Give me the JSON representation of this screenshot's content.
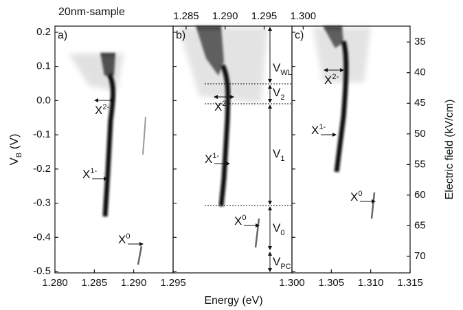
{
  "title": "20nm-sample",
  "chart_data": [
    {
      "type": "image",
      "panel_label": "a)",
      "xlim": [
        1.28,
        1.295
      ],
      "xticks": [
        {
          "value": 1.28,
          "label": "1.280"
        },
        1.285,
        {
          "value": 1.29,
          "label": "1.290"
        }
      ],
      "ylim": [
        -0.504,
        0.218
      ],
      "yticks": [
        0.2,
        0.1,
        {
          "value": 0,
          "label": "0.0"
        },
        -0.1,
        -0.2,
        -0.3,
        -0.4,
        -0.5
      ],
      "y_label": {
        "base": "V",
        "sub": "B",
        "unit": " (V)"
      },
      "annotations": [
        {
          "base": "X",
          "sup": "2-"
        },
        {
          "base": "X",
          "sup": "1-"
        },
        {
          "base": "X",
          "sup": "0"
        }
      ]
    },
    {
      "type": "image",
      "panel_label": "b)",
      "xlim": [
        1.295,
        1.3
      ],
      "xticks": [
        1.295,
        {
          "value": 1.3,
          "label": "1.300"
        }
      ],
      "x_label": "Energy (eV)",
      "x2lim": [
        1.2682,
        1.3137
      ],
      "x2ticks": [
        1.285,
        {
          "value": 1.29,
          "label": "1.290"
        },
        1.295,
        {
          "value": 1.3,
          "label": "1.300"
        }
      ],
      "annotations": [
        {
          "base": "X",
          "sup": "2-"
        },
        {
          "base": "X",
          "sup": "1-"
        },
        {
          "base": "X",
          "sup": "0"
        }
      ],
      "levels": [
        {
          "base": "V",
          "sub": "WL"
        },
        {
          "base": "V",
          "sub": "2"
        },
        {
          "base": "V",
          "sub": "1"
        },
        {
          "base": "V",
          "sub": "0"
        },
        {
          "base": "V",
          "sub": "PC"
        }
      ]
    },
    {
      "type": "image",
      "panel_label": "c)",
      "xlim": [
        1.3,
        1.315
      ],
      "xticks": [
        1.305,
        {
          "value": 1.31,
          "label": "1.310"
        },
        1.315
      ],
      "y2lim": [
        32.4,
        72.7
      ],
      "y2ticks": [
        35,
        40,
        45,
        50,
        55,
        60,
        65,
        70
      ],
      "y2_label": "Electric field (kV/cm)",
      "annotations": [
        {
          "base": "X",
          "sup": "2-"
        },
        {
          "base": "X",
          "sup": "1-"
        },
        {
          "base": "X",
          "sup": "0"
        }
      ]
    }
  ]
}
